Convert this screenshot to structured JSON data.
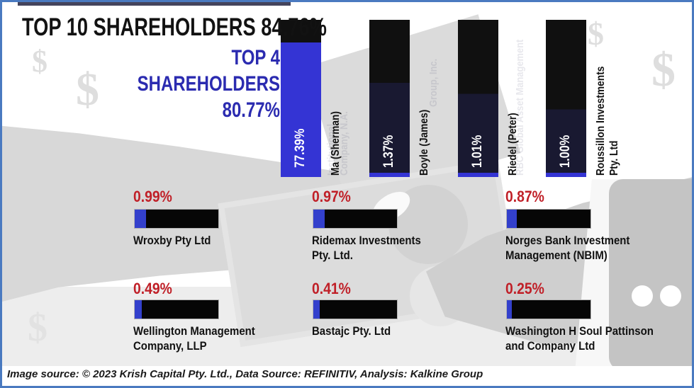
{
  "frame": {
    "border_color": "#4a7ac0",
    "background": "#ffffff"
  },
  "header": {
    "title": "TOP 10 SHAREHOLDERS 84.76%",
    "subtitle": "TOP 4\nSHAREHOLDERS\n80.77%"
  },
  "chart_data": {
    "type": "bar",
    "title": "TOP 10 SHAREHOLDERS 84.76%",
    "subtitle": "TOP 4 SHAREHOLDERS 80.77%",
    "top_10_total_pct": 84.76,
    "top_4_total_pct": 80.77,
    "unit": "%",
    "top4_bars": [
      {
        "name": "Ma (Sherman)",
        "label": "Ma (Sherman)",
        "value": 77.39,
        "display": "77.39%"
      },
      {
        "name": "Boyle (James)",
        "label": "Boyle (James)",
        "value": 1.37,
        "display": "1.37%"
      },
      {
        "name": "Riedel (Peter)",
        "label": "Riedel (Peter)",
        "value": 1.01,
        "display": "1.01%"
      },
      {
        "name": "Roussillon Investments Pty. Ltd",
        "label": "Roussillon Investments\nPty. Ltd",
        "value": 1.0,
        "display": "1.00%"
      }
    ],
    "other_holders": [
      {
        "name": "Wroxby Pty Ltd",
        "label": "Wroxby Pty Ltd",
        "value": 0.99,
        "display": "0.99%"
      },
      {
        "name": "Ridemax Investments Pty. Ltd.",
        "label": "Ridemax Investments\nPty. Ltd.",
        "value": 0.97,
        "display": "0.97%"
      },
      {
        "name": "Norges Bank Investment Management (NBIM)",
        "label": "Norges Bank Investment\nManagement (NBIM)",
        "value": 0.87,
        "display": "0.87%"
      },
      {
        "name": "Wellington Management Company, LLP",
        "label": "Wellington Management\nCompany, LLP",
        "value": 0.49,
        "display": "0.49%"
      },
      {
        "name": "Bastajc Pty. Ltd",
        "label": "Bastajc Pty. Ltd",
        "value": 0.41,
        "display": "0.41%"
      },
      {
        "name": "Washington H Soul Pattinson and Company Ltd",
        "label": "Washington H Soul Pattinson\nand Company Ltd",
        "value": 0.25,
        "display": "0.25%"
      }
    ],
    "colors": {
      "fill_blue": "#3434d4",
      "bar_black": "#101010",
      "bar_navy": "#191931",
      "pct_red": "#c01f27",
      "title_blue": "#2b2bb0",
      "border_blue": "#4a7ac0"
    },
    "legend_position": "none",
    "grid": false
  },
  "background_decor": {
    "dollar_sign": "$",
    "ghost_labels": {
      "g1a": "Institutional",
      "g1b": "Company, N.A.",
      "g2": "Group, Inc.",
      "g3": "RBC Global Asset Management"
    }
  },
  "footer": {
    "text": "Image source: © 2023 Krish Capital Pty. Ltd., Data Source: REFINITIV, Analysis: Kalkine Group"
  }
}
